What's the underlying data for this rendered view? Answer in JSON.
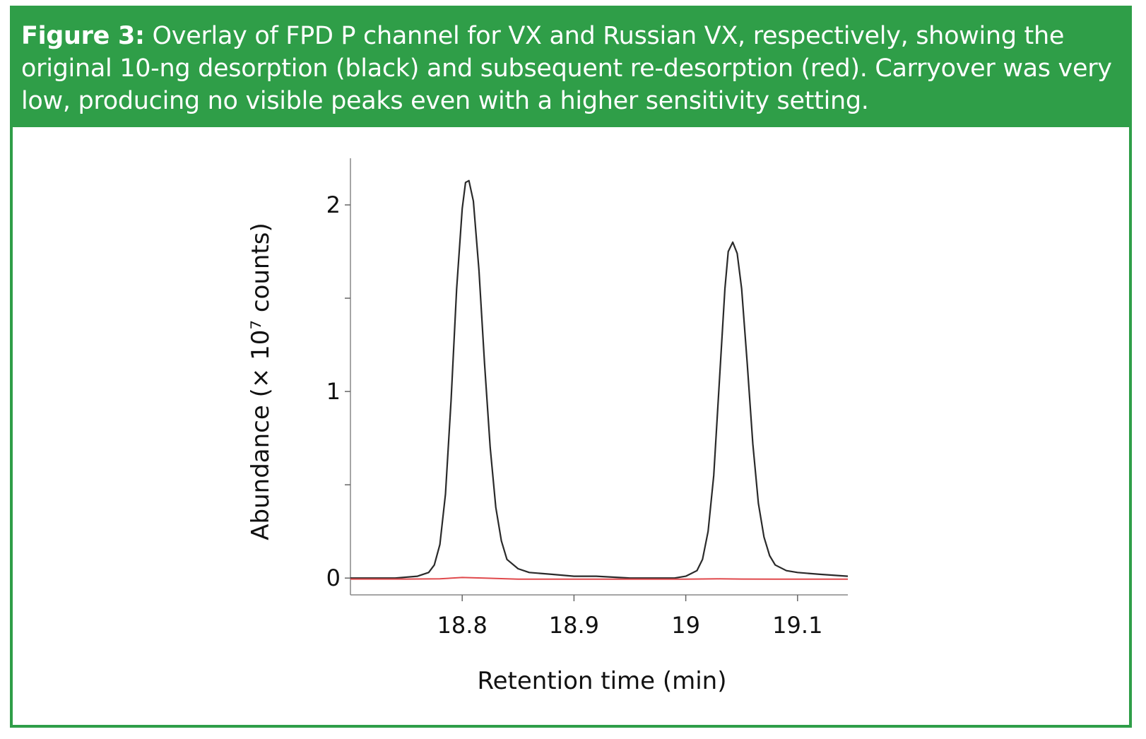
{
  "figure": {
    "label": "Figure 3:",
    "caption": "Overlay of FPD P channel for VX and Russian VX, respectively, showing the original 10-ng desorption (black) and subsequent re-desorption (red). Carryover was very low, producing no visible peaks even with a higher sensitivity setting."
  },
  "colors": {
    "accent": "#2f9e48",
    "original": "#2a2a2a",
    "redesorption": "#e0494c"
  },
  "chart_data": {
    "type": "line",
    "title": "",
    "xlabel": "Retention time (min)",
    "ylabel": "Abundance (× 10⁷ counts)",
    "xlim": [
      18.7,
      19.145
    ],
    "ylim": [
      -0.09,
      2.25
    ],
    "x_ticks": [
      18.8,
      18.9,
      19,
      19.1
    ],
    "x_tick_labels": [
      "18.8",
      "18.9",
      "19",
      "19.1"
    ],
    "y_ticks": [
      0,
      0.5,
      1,
      1.5,
      2
    ],
    "y_tick_labels": [
      "0",
      "",
      "1",
      "",
      "2"
    ],
    "series": [
      {
        "name": "Original 10-ng desorption",
        "color": "black",
        "x": [
          18.7,
          18.72,
          18.74,
          18.76,
          18.77,
          18.775,
          18.78,
          18.785,
          18.79,
          18.795,
          18.8,
          18.803,
          18.806,
          18.81,
          18.815,
          18.82,
          18.825,
          18.83,
          18.835,
          18.84,
          18.85,
          18.86,
          18.88,
          18.9,
          18.92,
          18.95,
          18.98,
          18.99,
          19.0,
          19.01,
          19.015,
          19.02,
          19.025,
          19.03,
          19.035,
          19.038,
          19.042,
          19.046,
          19.05,
          19.055,
          19.06,
          19.065,
          19.07,
          19.075,
          19.08,
          19.09,
          19.1,
          19.12,
          19.145
        ],
        "y": [
          0.0,
          0.0,
          0.0,
          0.01,
          0.03,
          0.07,
          0.18,
          0.45,
          0.95,
          1.55,
          1.98,
          2.12,
          2.13,
          2.02,
          1.65,
          1.15,
          0.7,
          0.38,
          0.2,
          0.1,
          0.05,
          0.03,
          0.02,
          0.01,
          0.01,
          0.0,
          0.0,
          0.0,
          0.01,
          0.04,
          0.1,
          0.25,
          0.55,
          1.05,
          1.55,
          1.75,
          1.8,
          1.74,
          1.55,
          1.15,
          0.72,
          0.4,
          0.22,
          0.12,
          0.07,
          0.04,
          0.03,
          0.02,
          0.01
        ]
      },
      {
        "name": "Subsequent re-desorption",
        "color": "red",
        "x": [
          18.7,
          18.75,
          18.78,
          18.8,
          18.82,
          18.85,
          18.9,
          18.95,
          19.0,
          19.03,
          19.05,
          19.08,
          19.1,
          19.145
        ],
        "y": [
          -0.005,
          -0.005,
          -0.004,
          0.003,
          0.0,
          -0.006,
          -0.006,
          -0.006,
          -0.006,
          -0.004,
          -0.005,
          -0.006,
          -0.006,
          -0.006
        ]
      }
    ]
  }
}
